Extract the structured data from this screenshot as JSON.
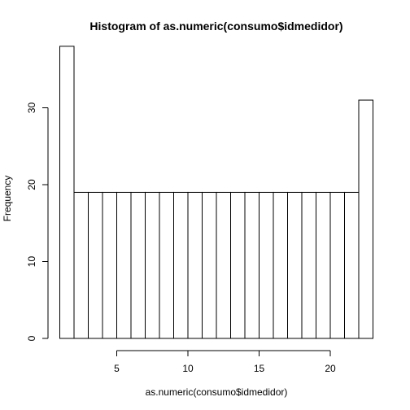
{
  "chart_data": {
    "type": "bar",
    "title": "Histogram of as.numeric(consumo$idmedidor)",
    "xlabel": "as.numeric(consumo$idmedidor)",
    "ylabel": "Frequency",
    "bin_edges": [
      1,
      2,
      3,
      4,
      5,
      6,
      7,
      8,
      9,
      10,
      11,
      12,
      13,
      14,
      15,
      16,
      17,
      18,
      19,
      20,
      21,
      22,
      23
    ],
    "values": [
      38,
      19,
      19,
      19,
      19,
      19,
      19,
      19,
      19,
      19,
      19,
      19,
      19,
      19,
      19,
      19,
      19,
      19,
      19,
      19,
      19,
      31
    ],
    "xlim": [
      1,
      23
    ],
    "ylim": [
      0,
      38
    ],
    "x_ticks": [
      5,
      10,
      15,
      20
    ],
    "y_ticks": [
      0,
      10,
      20,
      30
    ],
    "grid": false,
    "legend": "none",
    "colors": {
      "bar_fill": "#ffffff",
      "bar_stroke": "#000000",
      "text": "#000000"
    }
  }
}
